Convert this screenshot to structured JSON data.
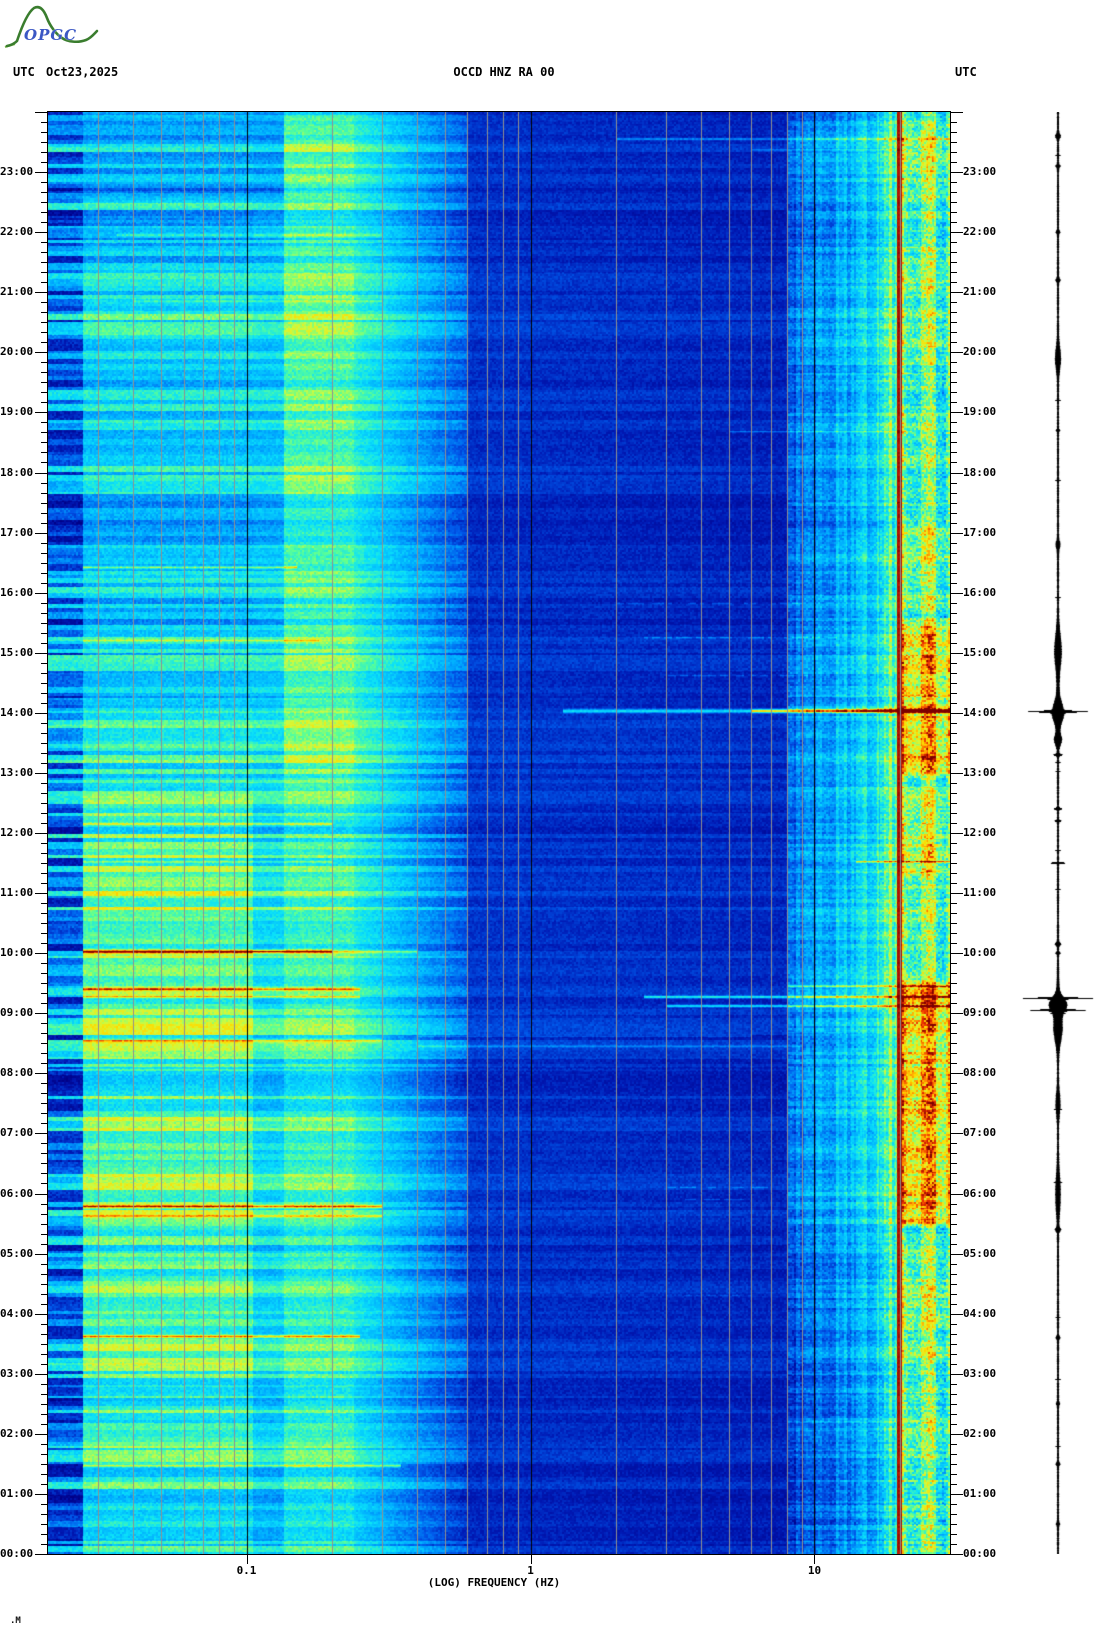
{
  "header": {
    "utc_left": "UTC",
    "date": "Oct23,2025",
    "station": "OCCD HNZ RA 00",
    "utc_right": "UTC"
  },
  "logo": {
    "text": "OPGC",
    "mountain_color": "#3a7d2e",
    "accent_color": "#7ab648",
    "text_color": "#3b57c4"
  },
  "footer_mark": ".M",
  "x_axis": {
    "label": "(LOG) FREQUENCY (HZ)",
    "ticks": [
      {
        "f": 0.1,
        "label": "0.1"
      },
      {
        "f": 1,
        "label": "1"
      },
      {
        "f": 10,
        "label": "10"
      }
    ]
  },
  "time_axis": {
    "hour_labels": [
      "00:00",
      "01:00",
      "02:00",
      "03:00",
      "04:00",
      "05:00",
      "06:00",
      "07:00",
      "08:00",
      "09:00",
      "10:00",
      "11:00",
      "12:00",
      "13:00",
      "14:00",
      "15:00",
      "16:00",
      "17:00",
      "18:00",
      "19:00",
      "20:00",
      "21:00",
      "22:00",
      "23:00"
    ],
    "minor_tick_minutes": 10
  },
  "chart_data": {
    "type": "heatmap",
    "title": "Seismic spectrogram OCCD HNZ RA 00, Oct 23 2025, 00:00-24:00 UTC",
    "x": {
      "scale": "log",
      "unit": "Hz",
      "min": 0.02,
      "max": 30,
      "gridlines_minor": [
        0.03,
        0.04,
        0.05,
        0.06,
        0.07,
        0.08,
        0.09,
        0.2,
        0.3,
        0.4,
        0.5,
        0.6,
        0.7,
        0.8,
        0.9,
        2,
        3,
        4,
        5,
        6,
        7,
        8,
        9,
        20
      ],
      "gridlines_major": [
        0.1,
        1,
        10
      ],
      "gridline_minor_color": "#909090",
      "gridline_major_color": "#000000"
    },
    "y": {
      "unit": "hours UTC",
      "min": 0,
      "max": 24,
      "direction": "bottom-up"
    },
    "artifact_line_hz": 20,
    "colormap": [
      [
        0.0,
        0,
        0,
        135
      ],
      [
        0.1,
        0,
        25,
        180
      ],
      [
        0.22,
        0,
        90,
        235
      ],
      [
        0.34,
        0,
        170,
        255
      ],
      [
        0.45,
        10,
        225,
        250
      ],
      [
        0.57,
        90,
        255,
        150
      ],
      [
        0.67,
        210,
        250,
        60
      ],
      [
        0.76,
        255,
        220,
        0
      ],
      [
        0.84,
        255,
        140,
        0
      ],
      [
        0.91,
        235,
        45,
        0
      ],
      [
        1.0,
        125,
        0,
        0
      ]
    ],
    "bands": [
      {
        "f0": 0.02,
        "f1": 0.0265,
        "i0": 0.3,
        "i1": 0.3,
        "stripe": 0.24,
        "src": "A",
        "col": 0.0,
        "cell": 0.05,
        "slow": 0.04,
        "time_mod": []
      },
      {
        "f0": 0.0265,
        "f1": 0.105,
        "i0": 0.5,
        "i1": 0.5,
        "stripe": 0.13,
        "src": "A",
        "col": 0.0,
        "cell": 0.05,
        "slow": 0.09,
        "time_mod": [
          [
            0,
            12.6,
            0.06
          ],
          [
            12.6,
            22.5,
            -0.05
          ],
          [
            22.5,
            24,
            -0.12
          ]
        ]
      },
      {
        "f0": 0.105,
        "f1": 0.135,
        "i0": 0.44,
        "i1": 0.44,
        "stripe": 0.12,
        "src": "A",
        "col": 0.0,
        "cell": 0.04,
        "slow": 0.06,
        "time_mod": [
          [
            0,
            12.6,
            0.02
          ],
          [
            22.5,
            24,
            -0.08
          ]
        ]
      },
      {
        "f0": 0.135,
        "f1": 0.24,
        "i0": 0.53,
        "i1": 0.53,
        "stripe": 0.1,
        "src": "A",
        "col": 0.0,
        "cell": 0.05,
        "slow": 0.07,
        "time_mod": [
          [
            13,
            24,
            0.05
          ],
          [
            0,
            3,
            0.03
          ]
        ]
      },
      {
        "f0": 0.24,
        "f1": 0.6,
        "i0": 0.5,
        "i1": 0.22,
        "stripe": 0.09,
        "src": "A",
        "col": 0.0,
        "cell": 0.04,
        "slow": 0.05,
        "time_mod": [
          [
            13,
            24,
            0.03
          ]
        ]
      },
      {
        "f0": 0.6,
        "f1": 8,
        "i0": 0.155,
        "i1": 0.125,
        "stripe": 0.035,
        "src": "A",
        "col": 0.0,
        "cell": 0.035,
        "slow": 0.02,
        "time_mod": []
      },
      {
        "f0": 8,
        "f1": 17,
        "i0": 0.16,
        "i1": 0.42,
        "stripe": 0.06,
        "src": "B",
        "col": 0.07,
        "cell": 0.06,
        "slow": 0.03,
        "time_mod": [
          [
            5,
            17,
            0.07
          ],
          [
            17.2,
            24,
            0.05
          ]
        ]
      },
      {
        "f0": 17,
        "f1": 19.5,
        "i0": 0.5,
        "i1": 0.5,
        "stripe": 0.06,
        "src": "B",
        "col": 0.09,
        "cell": 0.08,
        "slow": 0.03,
        "time_mod": [
          [
            5,
            17,
            0.06
          ],
          [
            17.2,
            24,
            0.05
          ]
        ]
      },
      {
        "f0": 19.5,
        "f1": 20.35,
        "i0": 0.965,
        "i1": 0.965,
        "stripe": 0.0,
        "src": "B",
        "col": 0.0,
        "cell": 0.02,
        "slow": 0.0,
        "time_mod": []
      },
      {
        "f0": 20.35,
        "f1": 29,
        "i0": 0.56,
        "i1": 0.56,
        "stripe": 0.07,
        "src": "B",
        "col": 0.13,
        "cell": 0.12,
        "slow": 0.05,
        "time_mod": [
          [
            5.4,
            9.6,
            0.21
          ],
          [
            12.9,
            15.6,
            0.21
          ],
          [
            11.2,
            12.7,
            0.11
          ],
          [
            15.6,
            17.2,
            0.09
          ],
          [
            0,
            5.4,
            0.04
          ],
          [
            21,
            24,
            0.05
          ]
        ]
      },
      {
        "f0": 29,
        "f1": 30,
        "i0": 0.64,
        "i1": 0.64,
        "stripe": 0.06,
        "src": "B",
        "col": 0.1,
        "cell": 0.12,
        "slow": 0.04,
        "time_mod": [
          [
            5.4,
            9.6,
            0.18
          ],
          [
            12.9,
            15.6,
            0.18
          ]
        ]
      }
    ],
    "row_events": [
      {
        "t": 10.03,
        "dt": 0.03,
        "f0": 0.0265,
        "f1": 0.2,
        "amp": 0.46
      },
      {
        "t": 10.03,
        "dt": 0.03,
        "f0": 0.2,
        "f1": 0.4,
        "amp": 0.18
      },
      {
        "t": 9.4,
        "dt": 0.022,
        "f0": 0.0265,
        "f1": 0.25,
        "amp": 0.3
      },
      {
        "t": 9.27,
        "dt": 0.02,
        "f0": 0.0265,
        "f1": 0.25,
        "amp": 0.24
      },
      {
        "t": 8.55,
        "dt": 0.03,
        "f0": 0.0265,
        "f1": 0.3,
        "amp": 0.17
      },
      {
        "t": 5.78,
        "dt": 0.028,
        "f0": 0.0265,
        "f1": 0.3,
        "amp": 0.36
      },
      {
        "t": 5.62,
        "dt": 0.02,
        "f0": 0.0265,
        "f1": 0.3,
        "amp": 0.24
      },
      {
        "t": 3.62,
        "dt": 0.025,
        "f0": 0.0265,
        "f1": 0.25,
        "amp": 0.38
      },
      {
        "t": 1.47,
        "dt": 0.025,
        "f0": 0.0265,
        "f1": 0.35,
        "amp": 0.3
      },
      {
        "t": 12.15,
        "dt": 0.022,
        "f0": 0.0265,
        "f1": 0.2,
        "amp": 0.24
      },
      {
        "t": 11.52,
        "dt": 0.018,
        "f0": 0.0265,
        "f1": 0.2,
        "amp": 0.16
      },
      {
        "t": 16.42,
        "dt": 0.02,
        "f0": 0.0265,
        "f1": 0.15,
        "amp": 0.26
      },
      {
        "t": 21.95,
        "dt": 0.025,
        "f0": 0.035,
        "f1": 0.3,
        "amp": 0.13
      },
      {
        "t": 20.85,
        "dt": 0.02,
        "f0": 0.04,
        "f1": 0.3,
        "amp": 0.1
      },
      {
        "t": 15.2,
        "dt": 0.018,
        "f0": 0.0265,
        "f1": 0.18,
        "amp": 0.14
      },
      {
        "t": 14.03,
        "dt": 0.03,
        "f0": 1.3,
        "f1": 30,
        "amp": 0.3
      },
      {
        "t": 14.03,
        "dt": 0.03,
        "f0": 6,
        "f1": 30,
        "amp": 0.34
      },
      {
        "t": 9.27,
        "dt": 0.022,
        "f0": 2.5,
        "f1": 30,
        "amp": 0.38
      },
      {
        "t": 9.12,
        "dt": 0.02,
        "f0": 3,
        "f1": 30,
        "amp": 0.33
      },
      {
        "t": 9.45,
        "dt": 0.018,
        "f0": 8,
        "f1": 30,
        "amp": 0.28
      },
      {
        "t": 11.52,
        "dt": 0.015,
        "f0": 14,
        "f1": 30,
        "amp": 0.33
      },
      {
        "t": 23.55,
        "dt": 0.018,
        "f0": 2,
        "f1": 30,
        "amp": 0.2
      },
      {
        "t": 23.37,
        "dt": 0.015,
        "f0": 6,
        "f1": 25,
        "amp": 0.12
      },
      {
        "t": 18.68,
        "dt": 0.015,
        "f0": 5,
        "f1": 22,
        "amp": 0.16
      },
      {
        "t": 15.25,
        "dt": 0.015,
        "f0": 2.5,
        "f1": 12,
        "amp": 0.13,
        "broken": true
      },
      {
        "t": 14.62,
        "dt": 0.015,
        "f0": 3,
        "f1": 10,
        "amp": 0.11,
        "broken": true
      },
      {
        "t": 15.82,
        "dt": 0.015,
        "f0": 2,
        "f1": 9,
        "amp": 0.11,
        "broken": true
      },
      {
        "t": 8.45,
        "dt": 0.02,
        "f0": 0.4,
        "f1": 9,
        "amp": 0.12
      },
      {
        "t": 8.62,
        "dt": 0.015,
        "f0": 0.4,
        "f1": 6,
        "amp": 0.1
      },
      {
        "t": 6.1,
        "dt": 0.015,
        "f0": 3,
        "f1": 7,
        "amp": 0.12,
        "broken": true
      },
      {
        "t": 5.9,
        "dt": 0.012,
        "f0": 3.5,
        "f1": 6,
        "amp": 0.1,
        "broken": true
      },
      {
        "t": 4.3,
        "dt": 0.012,
        "f0": 3,
        "f1": 6,
        "amp": 0.07,
        "broken": true
      },
      {
        "t": 2.2,
        "dt": 0.012,
        "f0": 8,
        "f1": 20,
        "amp": 0.08,
        "broken": true
      },
      {
        "t": 17.5,
        "dt": 0.012,
        "f0": 8,
        "f1": 20,
        "amp": 0.07,
        "broken": true
      },
      {
        "t": 20.3,
        "dt": 0.012,
        "f0": 10,
        "f1": 22,
        "amp": 0.08,
        "broken": true
      }
    ]
  },
  "trace": {
    "line_color": "#000000",
    "base_halfwidth": 0.8,
    "spikes": [
      {
        "t": 14.02,
        "half": 24,
        "dt": 0.018
      },
      {
        "t": 14.0,
        "half": 5,
        "dt": 0.22
      },
      {
        "t": 13.55,
        "half": 3,
        "dt": 0.12
      },
      {
        "t": 15.05,
        "half": 2.5,
        "dt": 0.35
      },
      {
        "t": 9.25,
        "half": 30,
        "dt": 0.014
      },
      {
        "t": 9.05,
        "half": 22,
        "dt": 0.014
      },
      {
        "t": 9.15,
        "half": 7,
        "dt": 0.15
      },
      {
        "t": 8.75,
        "half": 3,
        "dt": 0.3
      },
      {
        "t": 9.0,
        "half": 0.9,
        "dt": 0.5
      },
      {
        "t": 14.6,
        "half": 0.5,
        "dt": 0.7
      },
      {
        "t": 11.5,
        "half": 9,
        "dt": 0.012
      },
      {
        "t": 12.4,
        "half": 3.5,
        "dt": 0.02
      },
      {
        "t": 13.3,
        "half": 4,
        "dt": 0.02
      },
      {
        "t": 10.15,
        "half": 2.5,
        "dt": 0.03
      },
      {
        "t": 12.2,
        "half": 2.5,
        "dt": 0.02
      },
      {
        "t": 23.6,
        "half": 2,
        "dt": 0.05
      },
      {
        "t": 21.2,
        "half": 1.5,
        "dt": 0.04
      },
      {
        "t": 19.9,
        "half": 2,
        "dt": 0.25
      },
      {
        "t": 16.8,
        "half": 1.5,
        "dt": 0.08
      },
      {
        "t": 6.0,
        "half": 1.8,
        "dt": 0.4
      },
      {
        "t": 5.4,
        "half": 2,
        "dt": 0.04
      },
      {
        "t": 3.6,
        "half": 1.5,
        "dt": 0.03
      },
      {
        "t": 1.5,
        "half": 1.5,
        "dt": 0.03
      },
      {
        "t": 10.0,
        "half": 2,
        "dt": 0.02
      },
      {
        "t": 23.1,
        "half": 1.6,
        "dt": 0.03
      },
      {
        "t": 22.0,
        "half": 1.4,
        "dt": 0.03
      },
      {
        "t": 18.7,
        "half": 1.5,
        "dt": 0.02
      },
      {
        "t": 2.5,
        "half": 1.2,
        "dt": 0.03
      },
      {
        "t": 0.5,
        "half": 1.2,
        "dt": 0.03
      },
      {
        "t": 7.5,
        "half": 1.5,
        "dt": 0.25
      }
    ]
  }
}
